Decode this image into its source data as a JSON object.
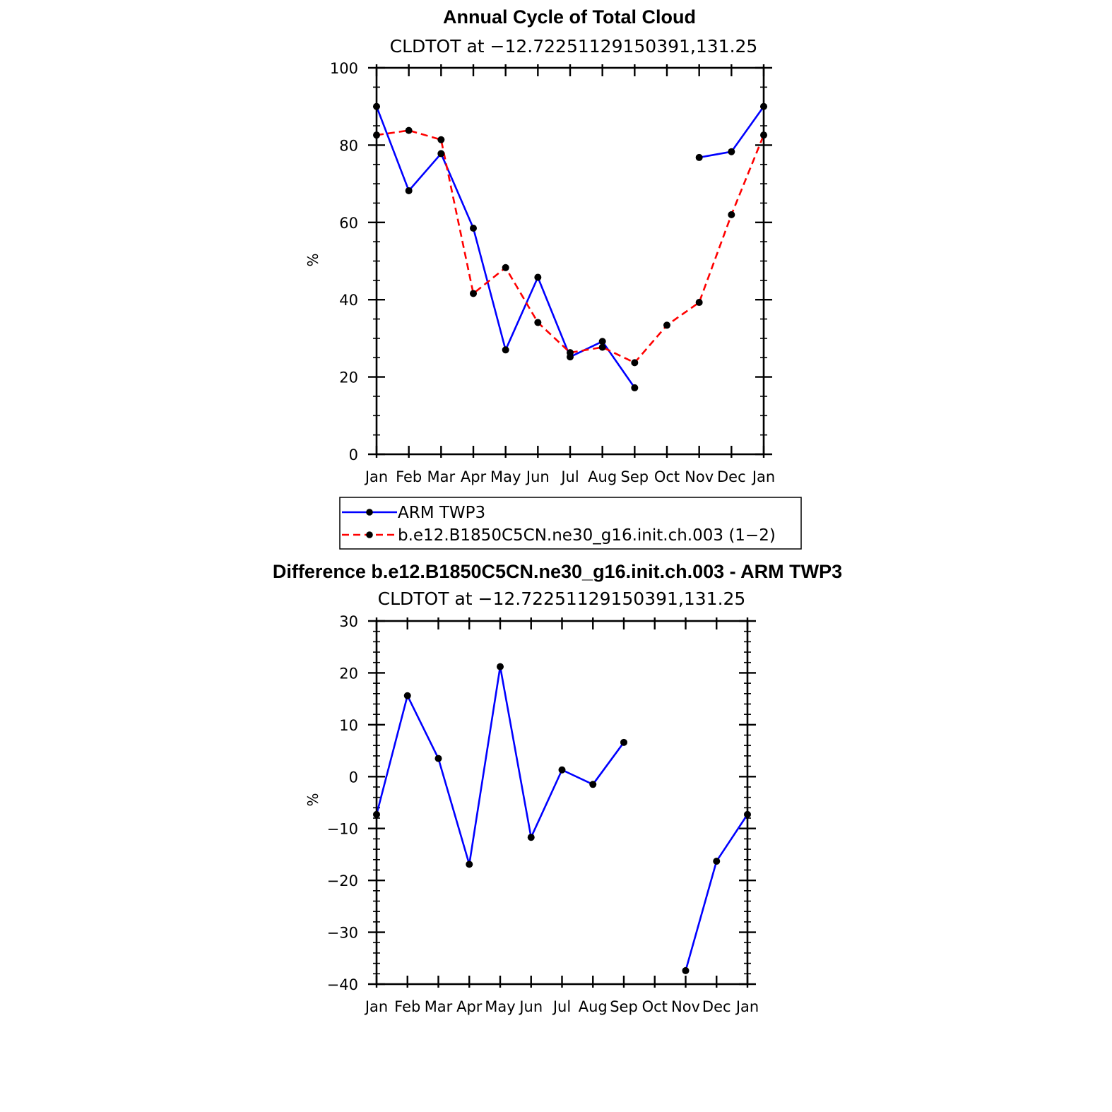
{
  "chart_data": [
    {
      "type": "line",
      "title": "Annual Cycle of Total Cloud",
      "subtitle": "CLDTOT at −12.72251129150391,131.25",
      "ylabel": "%",
      "ylim": [
        0,
        100
      ],
      "yticks": [
        "0",
        "20",
        "40",
        "60",
        "80",
        "100"
      ],
      "categories": [
        "Jan",
        "Feb",
        "Mar",
        "Apr",
        "May",
        "Jun",
        "Jul",
        "Aug",
        "Sep",
        "Oct",
        "Nov",
        "Dec",
        "Jan"
      ],
      "series": [
        {
          "name": "ARM TWP3",
          "color": "#0000ff",
          "dash": "solid",
          "values": [
            90,
            68.2,
            77.8,
            58.5,
            27,
            45.8,
            25.2,
            29.2,
            17.2,
            null,
            76.8,
            78.3,
            90
          ]
        },
        {
          "name": "b.e12.B1850C5CN.ne30_g16.init.ch.003 (1−2)",
          "color": "#ff0000",
          "dash": "dashed",
          "values": [
            82.6,
            83.8,
            81.4,
            41.6,
            48.3,
            34.1,
            26.3,
            27.7,
            23.7,
            33.4,
            39.3,
            62,
            82.6
          ]
        }
      ]
    },
    {
      "type": "line",
      "title": "Difference b.e12.B1850C5CN.ne30_g16.init.ch.003 - ARM TWP3",
      "subtitle": "CLDTOT at −12.72251129150391,131.25",
      "ylabel": "%",
      "ylim": [
        -40,
        30
      ],
      "yticks": [
        "−40",
        "−30",
        "−20",
        "−10",
        "0",
        "10",
        "20",
        "30"
      ],
      "categories": [
        "Jan",
        "Feb",
        "Mar",
        "Apr",
        "May",
        "Jun",
        "Jul",
        "Aug",
        "Sep",
        "Oct",
        "Nov",
        "Dec",
        "Jan"
      ],
      "series": [
        {
          "name": "Difference",
          "color": "#0000ff",
          "dash": "solid",
          "values": [
            -7.3,
            15.6,
            3.5,
            -16.9,
            21.2,
            -11.7,
            1.3,
            -1.5,
            6.6,
            null,
            -37.4,
            -16.3,
            -7.3
          ]
        }
      ]
    }
  ]
}
